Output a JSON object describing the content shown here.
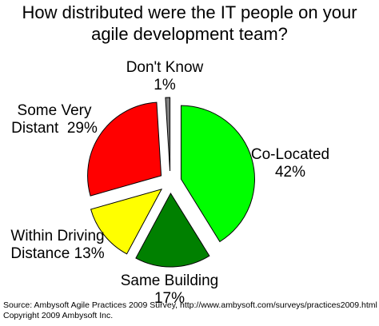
{
  "chart_data": {
    "type": "pie",
    "title": "How distributed were the IT people on your agile development team?",
    "title_lines": [
      "How distributed were the IT people on your",
      "agile development team?"
    ],
    "exploded": true,
    "slices": [
      {
        "label": "Co-Located",
        "value": 42,
        "value_label": "42%",
        "color": "#00ff00"
      },
      {
        "label": "Same Building",
        "value": 17,
        "value_label": "17%",
        "color": "#008000"
      },
      {
        "label": "Within Driving Distance",
        "value": 13,
        "value_label": "13%",
        "color": "#ffff00"
      },
      {
        "label": "Some Very Distant",
        "value": 29,
        "value_label": "29%",
        "color": "#ff0000"
      },
      {
        "label": "Don't Know",
        "value": 1,
        "value_label": "1%",
        "color": "#808080"
      }
    ],
    "labels": {
      "co_located": {
        "name": "Co-Located",
        "pct": "42%"
      },
      "same_building": {
        "name": "Same Building",
        "pct": "17%"
      },
      "within_driving_line1": "Within Driving",
      "within_driving_line2": "Distance 13%",
      "some_very_distant_line1": "Some Very",
      "some_very_distant_line2": "Distant  29%",
      "dont_know": {
        "name": "Don't Know",
        "pct": "1%"
      }
    }
  },
  "footer": {
    "source": "Source: Ambysoft Agile Practices 2009 Survey, http://www.ambysoft.com/surveys/practices2009.html",
    "copyright": "Copyright 2009 Ambysoft Inc."
  }
}
